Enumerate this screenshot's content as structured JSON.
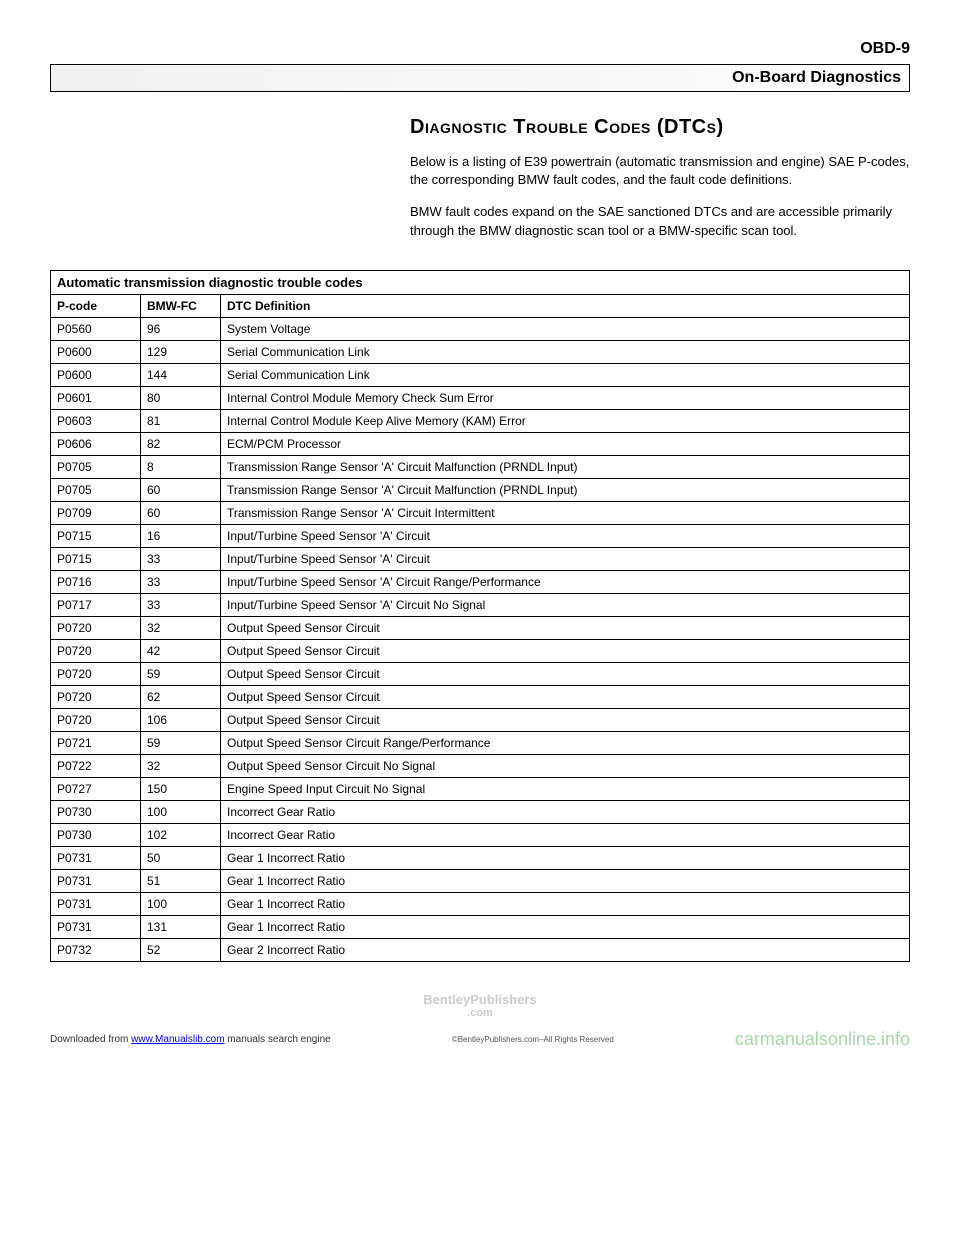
{
  "header": {
    "page_code": "OBD-9",
    "banner": "On-Board Diagnostics"
  },
  "section": {
    "heading": "Diagnostic Trouble Codes (DTCs)",
    "para1": "Below is a listing of E39 powertrain (automatic transmission and engine) SAE P-codes, the corresponding BMW fault codes, and the fault code definitions.",
    "para2": "BMW fault codes expand on the SAE sanctioned DTCs and are accessible primarily through the BMW diagnostic scan tool or a BMW-specific scan tool."
  },
  "table": {
    "caption": "Automatic transmission diagnostic trouble codes",
    "columns": {
      "pcode": "P-code",
      "bmwfc": "BMW-FC",
      "definition": "DTC Definition"
    },
    "rows": [
      {
        "pcode": "P0560",
        "bmwfc": "96",
        "def": "System Voltage"
      },
      {
        "pcode": "P0600",
        "bmwfc": "129",
        "def": "Serial Communication Link"
      },
      {
        "pcode": "P0600",
        "bmwfc": "144",
        "def": "Serial Communication Link"
      },
      {
        "pcode": "P0601",
        "bmwfc": "80",
        "def": "Internal Control Module Memory Check Sum Error"
      },
      {
        "pcode": "P0603",
        "bmwfc": "81",
        "def": "Internal Control Module Keep Alive Memory (KAM) Error"
      },
      {
        "pcode": "P0606",
        "bmwfc": "82",
        "def": "ECM/PCM Processor"
      },
      {
        "pcode": "P0705",
        "bmwfc": "8",
        "def": "Transmission Range Sensor 'A' Circuit Malfunction (PRNDL Input)"
      },
      {
        "pcode": "P0705",
        "bmwfc": "60",
        "def": "Transmission Range Sensor 'A' Circuit Malfunction (PRNDL Input)"
      },
      {
        "pcode": "P0709",
        "bmwfc": "60",
        "def": "Transmission Range Sensor 'A' Circuit Intermittent"
      },
      {
        "pcode": "P0715",
        "bmwfc": "16",
        "def": "Input/Turbine Speed Sensor 'A' Circuit"
      },
      {
        "pcode": "P0715",
        "bmwfc": "33",
        "def": "Input/Turbine Speed Sensor 'A' Circuit"
      },
      {
        "pcode": "P0716",
        "bmwfc": "33",
        "def": "Input/Turbine Speed Sensor 'A' Circuit Range/Performance"
      },
      {
        "pcode": "P0717",
        "bmwfc": "33",
        "def": "Input/Turbine Speed Sensor 'A' Circuit No Signal"
      },
      {
        "pcode": "P0720",
        "bmwfc": "32",
        "def": "Output Speed Sensor Circuit"
      },
      {
        "pcode": "P0720",
        "bmwfc": "42",
        "def": "Output Speed Sensor Circuit"
      },
      {
        "pcode": "P0720",
        "bmwfc": "59",
        "def": "Output Speed Sensor Circuit"
      },
      {
        "pcode": "P0720",
        "bmwfc": "62",
        "def": "Output Speed Sensor Circuit"
      },
      {
        "pcode": "P0720",
        "bmwfc": "106",
        "def": "Output Speed Sensor Circuit"
      },
      {
        "pcode": "P0721",
        "bmwfc": "59",
        "def": "Output Speed Sensor Circuit Range/Performance"
      },
      {
        "pcode": "P0722",
        "bmwfc": "32",
        "def": "Output Speed Sensor Circuit No Signal"
      },
      {
        "pcode": "P0727",
        "bmwfc": "150",
        "def": "Engine Speed Input Circuit No Signal"
      },
      {
        "pcode": "P0730",
        "bmwfc": "100",
        "def": "Incorrect Gear Ratio"
      },
      {
        "pcode": "P0730",
        "bmwfc": "102",
        "def": "Incorrect Gear Ratio"
      },
      {
        "pcode": "P0731",
        "bmwfc": "50",
        "def": "Gear 1 Incorrect Ratio"
      },
      {
        "pcode": "P0731",
        "bmwfc": "51",
        "def": "Gear 1 Incorrect Ratio"
      },
      {
        "pcode": "P0731",
        "bmwfc": "100",
        "def": "Gear 1 Incorrect Ratio"
      },
      {
        "pcode": "P0731",
        "bmwfc": "131",
        "def": "Gear 1 Incorrect Ratio"
      },
      {
        "pcode": "P0732",
        "bmwfc": "52",
        "def": "Gear 2 Incorrect Ratio"
      }
    ]
  },
  "footer": {
    "watermark_main": "BentleyPublishers",
    "watermark_sub": ".com",
    "download_prefix": "Downloaded from ",
    "download_link": "www.Manualslib.com",
    "download_suffix": " manuals search engine",
    "copyright": "©BentleyPublishers.com–All Rights Reserved",
    "site": "carmanualsonline.info"
  }
}
